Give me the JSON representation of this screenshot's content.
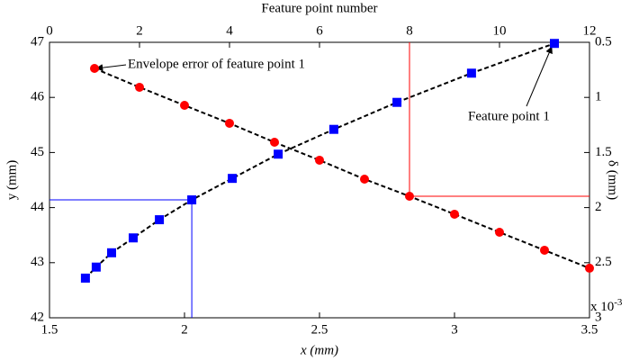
{
  "chart_data": {
    "type": "scatter",
    "title": "Feature point number",
    "xlabel": "x (mm)",
    "ylabel": "y (mm)",
    "y2label": "δ (mm)",
    "y2_multiplier": {
      "base": "x 10",
      "exponent": "-3"
    },
    "xlim": [
      1.5,
      3.5
    ],
    "xticks": [
      1.5,
      2,
      2.5,
      3,
      3.5
    ],
    "ylim": [
      42,
      47
    ],
    "yticks": [
      42,
      43,
      44,
      45,
      46,
      47
    ],
    "x2lim": [
      0,
      12
    ],
    "x2ticks": [
      0,
      2,
      4,
      6,
      8,
      10,
      12
    ],
    "y2lim": [
      0.5,
      3
    ],
    "y2ticks": [
      0.5,
      1,
      1.5,
      2,
      2.5,
      3
    ],
    "y2_reversed": true,
    "series": [
      {
        "color": "#0000ff",
        "marker": "square",
        "x": [
          1.633,
          1.673,
          1.73,
          1.81,
          1.907,
          2.027,
          2.177,
          2.347,
          2.553,
          2.787,
          3.063,
          3.37
        ],
        "values": [
          42.72,
          42.92,
          43.18,
          43.45,
          43.78,
          44.14,
          44.53,
          44.97,
          45.42,
          45.91,
          46.44,
          46.98
        ]
      },
      {
        "color": "#ff0000",
        "marker": "circle",
        "axis": "y2",
        "x": [
          1,
          2,
          3,
          4,
          5,
          6,
          7,
          8,
          9,
          10,
          11,
          12
        ],
        "values": [
          0.737,
          0.908,
          1.072,
          1.235,
          1.407,
          1.57,
          1.742,
          1.897,
          2.06,
          2.224,
          2.387,
          2.55
        ]
      }
    ],
    "annotations": [
      "Envelope error of feature point 1",
      "Feature point 1"
    ]
  }
}
